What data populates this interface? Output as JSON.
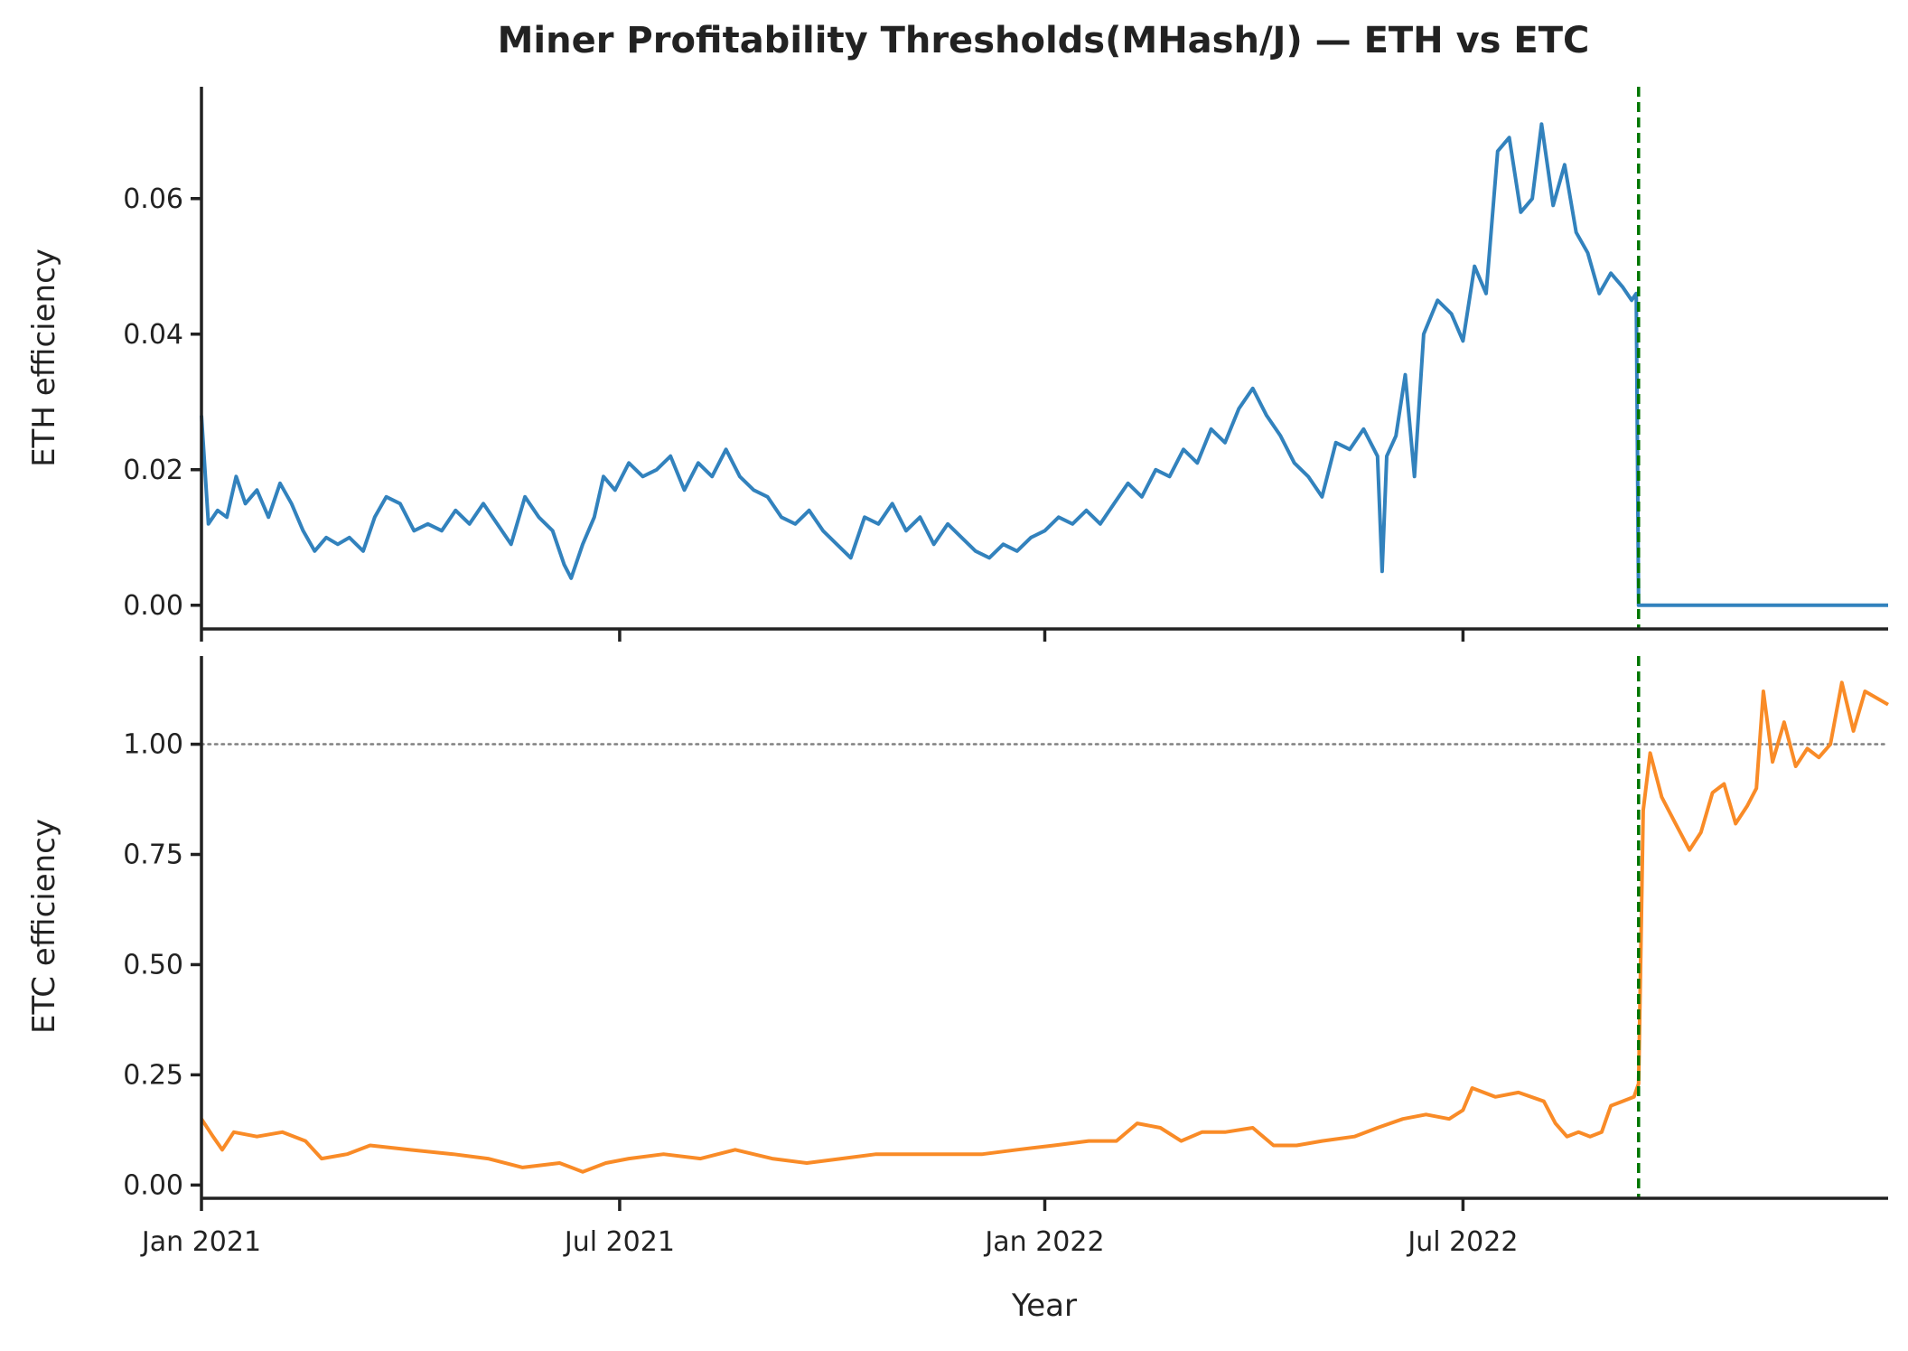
{
  "chart_data": {
    "type": "line",
    "title": "Miner Profitability Thresholds(MHash/J) — ETH vs ETC",
    "xlabel": "Year",
    "x_range": [
      "2021-01-01",
      "2023-01-01"
    ],
    "x_ticks": [
      {
        "date": "2021-01-01",
        "label": "Jan 2021"
      },
      {
        "date": "2021-07-01",
        "label": "Jul 2021"
      },
      {
        "date": "2022-01-01",
        "label": "Jan 2022"
      },
      {
        "date": "2022-07-01",
        "label": "Jul 2022"
      }
    ],
    "event_line": {
      "date": "2022-09-15",
      "color": "#007500",
      "style": "dashed"
    },
    "panels": [
      {
        "name": "eth",
        "ylabel": "ETH efficiency",
        "ylim": [
          -0.0035,
          0.0765
        ],
        "y_ticks": [
          {
            "value": 0.0,
            "label": "0.00"
          },
          {
            "value": 0.02,
            "label": "0.02"
          },
          {
            "value": 0.04,
            "label": "0.04"
          },
          {
            "value": 0.06,
            "label": "0.06"
          }
        ],
        "series": {
          "name": "ETH",
          "color": "#3282bd",
          "points": [
            [
              "2021-01-01",
              0.028
            ],
            [
              "2021-01-04",
              0.012
            ],
            [
              "2021-01-08",
              0.014
            ],
            [
              "2021-01-12",
              0.013
            ],
            [
              "2021-01-16",
              0.019
            ],
            [
              "2021-01-20",
              0.015
            ],
            [
              "2021-01-25",
              0.017
            ],
            [
              "2021-01-30",
              0.013
            ],
            [
              "2021-02-04",
              0.018
            ],
            [
              "2021-02-09",
              0.015
            ],
            [
              "2021-02-14",
              0.011
            ],
            [
              "2021-02-19",
              0.008
            ],
            [
              "2021-02-24",
              0.01
            ],
            [
              "2021-03-01",
              0.009
            ],
            [
              "2021-03-06",
              0.01
            ],
            [
              "2021-03-12",
              0.008
            ],
            [
              "2021-03-17",
              0.013
            ],
            [
              "2021-03-22",
              0.016
            ],
            [
              "2021-03-28",
              0.015
            ],
            [
              "2021-04-03",
              0.011
            ],
            [
              "2021-04-09",
              0.012
            ],
            [
              "2021-04-15",
              0.011
            ],
            [
              "2021-04-21",
              0.014
            ],
            [
              "2021-04-27",
              0.012
            ],
            [
              "2021-05-03",
              0.015
            ],
            [
              "2021-05-09",
              0.012
            ],
            [
              "2021-05-15",
              0.009
            ],
            [
              "2021-05-21",
              0.016
            ],
            [
              "2021-05-27",
              0.013
            ],
            [
              "2021-06-02",
              0.011
            ],
            [
              "2021-06-07",
              0.006
            ],
            [
              "2021-06-10",
              0.004
            ],
            [
              "2021-06-15",
              0.009
            ],
            [
              "2021-06-20",
              0.013
            ],
            [
              "2021-06-24",
              0.019
            ],
            [
              "2021-06-29",
              0.017
            ],
            [
              "2021-07-05",
              0.021
            ],
            [
              "2021-07-11",
              0.019
            ],
            [
              "2021-07-17",
              0.02
            ],
            [
              "2021-07-23",
              0.022
            ],
            [
              "2021-07-29",
              0.017
            ],
            [
              "2021-08-04",
              0.021
            ],
            [
              "2021-08-10",
              0.019
            ],
            [
              "2021-08-16",
              0.023
            ],
            [
              "2021-08-22",
              0.019
            ],
            [
              "2021-08-28",
              0.017
            ],
            [
              "2021-09-03",
              0.016
            ],
            [
              "2021-09-09",
              0.013
            ],
            [
              "2021-09-15",
              0.012
            ],
            [
              "2021-09-21",
              0.014
            ],
            [
              "2021-09-27",
              0.011
            ],
            [
              "2021-10-03",
              0.009
            ],
            [
              "2021-10-09",
              0.007
            ],
            [
              "2021-10-15",
              0.013
            ],
            [
              "2021-10-21",
              0.012
            ],
            [
              "2021-10-27",
              0.015
            ],
            [
              "2021-11-02",
              0.011
            ],
            [
              "2021-11-08",
              0.013
            ],
            [
              "2021-11-14",
              0.009
            ],
            [
              "2021-11-20",
              0.012
            ],
            [
              "2021-11-26",
              0.01
            ],
            [
              "2021-12-02",
              0.008
            ],
            [
              "2021-12-08",
              0.007
            ],
            [
              "2021-12-14",
              0.009
            ],
            [
              "2021-12-20",
              0.008
            ],
            [
              "2021-12-26",
              0.01
            ],
            [
              "2022-01-01",
              0.011
            ],
            [
              "2022-01-07",
              0.013
            ],
            [
              "2022-01-13",
              0.012
            ],
            [
              "2022-01-19",
              0.014
            ],
            [
              "2022-01-25",
              0.012
            ],
            [
              "2022-01-31",
              0.015
            ],
            [
              "2022-02-06",
              0.018
            ],
            [
              "2022-02-12",
              0.016
            ],
            [
              "2022-02-18",
              0.02
            ],
            [
              "2022-02-24",
              0.019
            ],
            [
              "2022-03-02",
              0.023
            ],
            [
              "2022-03-08",
              0.021
            ],
            [
              "2022-03-14",
              0.026
            ],
            [
              "2022-03-20",
              0.024
            ],
            [
              "2022-03-26",
              0.029
            ],
            [
              "2022-04-01",
              0.032
            ],
            [
              "2022-04-07",
              0.028
            ],
            [
              "2022-04-13",
              0.025
            ],
            [
              "2022-04-19",
              0.021
            ],
            [
              "2022-04-25",
              0.019
            ],
            [
              "2022-05-01",
              0.016
            ],
            [
              "2022-05-07",
              0.024
            ],
            [
              "2022-05-13",
              0.023
            ],
            [
              "2022-05-19",
              0.026
            ],
            [
              "2022-05-25",
              0.022
            ],
            [
              "2022-05-27",
              0.005
            ],
            [
              "2022-05-29",
              0.022
            ],
            [
              "2022-06-02",
              0.025
            ],
            [
              "2022-06-06",
              0.034
            ],
            [
              "2022-06-10",
              0.019
            ],
            [
              "2022-06-14",
              0.04
            ],
            [
              "2022-06-20",
              0.045
            ],
            [
              "2022-06-26",
              0.043
            ],
            [
              "2022-07-01",
              0.039
            ],
            [
              "2022-07-06",
              0.05
            ],
            [
              "2022-07-11",
              0.046
            ],
            [
              "2022-07-16",
              0.067
            ],
            [
              "2022-07-21",
              0.069
            ],
            [
              "2022-07-26",
              0.058
            ],
            [
              "2022-07-31",
              0.06
            ],
            [
              "2022-08-04",
              0.071
            ],
            [
              "2022-08-09",
              0.059
            ],
            [
              "2022-08-14",
              0.065
            ],
            [
              "2022-08-19",
              0.055
            ],
            [
              "2022-08-24",
              0.052
            ],
            [
              "2022-08-29",
              0.046
            ],
            [
              "2022-09-03",
              0.049
            ],
            [
              "2022-09-08",
              0.047
            ],
            [
              "2022-09-12",
              0.045
            ],
            [
              "2022-09-14",
              0.046
            ],
            [
              "2022-09-15",
              0.0
            ],
            [
              "2023-01-01",
              0.0
            ]
          ]
        }
      },
      {
        "name": "etc",
        "ylabel": "ETC efficiency",
        "ylim": [
          -0.03,
          1.2
        ],
        "y_ticks": [
          {
            "value": 0.0,
            "label": "0.00"
          },
          {
            "value": 0.25,
            "label": "0.25"
          },
          {
            "value": 0.5,
            "label": "0.50"
          },
          {
            "value": 0.75,
            "label": "0.75"
          },
          {
            "value": 1.0,
            "label": "1.00"
          }
        ],
        "reference_line": {
          "value": 1.0,
          "color": "#808080",
          "style": "dotted"
        },
        "series": {
          "name": "ETC",
          "color": "#f98b27",
          "points": [
            [
              "2021-01-01",
              0.15
            ],
            [
              "2021-01-06",
              0.11
            ],
            [
              "2021-01-10",
              0.08
            ],
            [
              "2021-01-15",
              0.12
            ],
            [
              "2021-01-25",
              0.11
            ],
            [
              "2021-02-05",
              0.12
            ],
            [
              "2021-02-15",
              0.1
            ],
            [
              "2021-02-22",
              0.06
            ],
            [
              "2021-03-05",
              0.07
            ],
            [
              "2021-03-15",
              0.09
            ],
            [
              "2021-04-01",
              0.08
            ],
            [
              "2021-04-20",
              0.07
            ],
            [
              "2021-05-05",
              0.06
            ],
            [
              "2021-05-20",
              0.04
            ],
            [
              "2021-06-05",
              0.05
            ],
            [
              "2021-06-15",
              0.03
            ],
            [
              "2021-06-25",
              0.05
            ],
            [
              "2021-07-05",
              0.06
            ],
            [
              "2021-07-20",
              0.07
            ],
            [
              "2021-08-05",
              0.06
            ],
            [
              "2021-08-20",
              0.08
            ],
            [
              "2021-09-05",
              0.06
            ],
            [
              "2021-09-20",
              0.05
            ],
            [
              "2021-10-05",
              0.06
            ],
            [
              "2021-10-20",
              0.07
            ],
            [
              "2021-11-05",
              0.07
            ],
            [
              "2021-11-20",
              0.07
            ],
            [
              "2021-12-05",
              0.07
            ],
            [
              "2021-12-20",
              0.08
            ],
            [
              "2022-01-05",
              0.09
            ],
            [
              "2022-01-20",
              0.1
            ],
            [
              "2022-02-01",
              0.1
            ],
            [
              "2022-02-10",
              0.14
            ],
            [
              "2022-02-20",
              0.13
            ],
            [
              "2022-03-01",
              0.1
            ],
            [
              "2022-03-10",
              0.12
            ],
            [
              "2022-03-20",
              0.12
            ],
            [
              "2022-04-01",
              0.13
            ],
            [
              "2022-04-10",
              0.09
            ],
            [
              "2022-04-20",
              0.09
            ],
            [
              "2022-05-01",
              0.1
            ],
            [
              "2022-05-15",
              0.11
            ],
            [
              "2022-05-25",
              0.13
            ],
            [
              "2022-06-05",
              0.15
            ],
            [
              "2022-06-15",
              0.16
            ],
            [
              "2022-06-25",
              0.15
            ],
            [
              "2022-07-01",
              0.17
            ],
            [
              "2022-07-05",
              0.22
            ],
            [
              "2022-07-15",
              0.2
            ],
            [
              "2022-07-25",
              0.21
            ],
            [
              "2022-08-05",
              0.19
            ],
            [
              "2022-08-10",
              0.14
            ],
            [
              "2022-08-15",
              0.11
            ],
            [
              "2022-08-20",
              0.12
            ],
            [
              "2022-08-25",
              0.11
            ],
            [
              "2022-08-30",
              0.12
            ],
            [
              "2022-09-03",
              0.18
            ],
            [
              "2022-09-08",
              0.19
            ],
            [
              "2022-09-13",
              0.2
            ],
            [
              "2022-09-15",
              0.23
            ],
            [
              "2022-09-17",
              0.85
            ],
            [
              "2022-09-20",
              0.98
            ],
            [
              "2022-09-25",
              0.88
            ],
            [
              "2022-10-01",
              0.82
            ],
            [
              "2022-10-07",
              0.76
            ],
            [
              "2022-10-12",
              0.8
            ],
            [
              "2022-10-17",
              0.89
            ],
            [
              "2022-10-22",
              0.91
            ],
            [
              "2022-10-27",
              0.82
            ],
            [
              "2022-11-01",
              0.86
            ],
            [
              "2022-11-05",
              0.9
            ],
            [
              "2022-11-08",
              1.12
            ],
            [
              "2022-11-12",
              0.96
            ],
            [
              "2022-11-17",
              1.05
            ],
            [
              "2022-11-22",
              0.95
            ],
            [
              "2022-11-27",
              0.99
            ],
            [
              "2022-12-02",
              0.97
            ],
            [
              "2022-12-07",
              1.0
            ],
            [
              "2022-12-12",
              1.14
            ],
            [
              "2022-12-17",
              1.03
            ],
            [
              "2022-12-22",
              1.12
            ],
            [
              "2023-01-01",
              1.09
            ]
          ]
        }
      }
    ]
  }
}
